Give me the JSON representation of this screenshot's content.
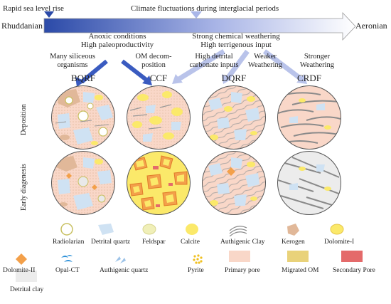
{
  "timeline": {
    "start": "Rhuddanian",
    "end": "Aeronian",
    "event_left": "Rapid sea level rise",
    "event_center": "Climate fluctuations during interglacial periods"
  },
  "drivers": {
    "left": [
      "Anoxic conditions",
      "High paleoproductivity"
    ],
    "right": [
      "Strong chemical weathering",
      "High terrigenous input"
    ]
  },
  "arrow_labels": {
    "a1": [
      "Many siliceous",
      "organisms"
    ],
    "a2": [
      "OM decom-",
      "position"
    ],
    "a3": [
      "High detrital",
      "carbonate inputs"
    ],
    "a4": [
      "Weaker",
      "Weathering"
    ],
    "a5": [
      "Stronger",
      "Weathering"
    ]
  },
  "facies": [
    "BQRF",
    "CCF",
    "DQRF",
    "CRDF"
  ],
  "rows": [
    "Deposition",
    "Early diagenesis"
  ],
  "legend": [
    {
      "label": "Radiolarian",
      "icon": "radiolarian-icon"
    },
    {
      "label": "Detrital quartz",
      "icon": "detrital-quartz-icon"
    },
    {
      "label": "Feldspar",
      "icon": "feldspar-icon"
    },
    {
      "label": "Calcite",
      "icon": "calcite-icon"
    },
    {
      "label": "Authigenic Clay",
      "icon": "authigenic-clay-icon"
    },
    {
      "label": "Kerogen",
      "icon": "kerogen-icon"
    },
    {
      "label": "Dolomite-I",
      "icon": "dolomite-i-icon"
    },
    {
      "label": "Dolomite-II",
      "icon": "dolomite-ii-icon"
    },
    {
      "label": "Opal-CT",
      "icon": "opal-ct-icon"
    },
    {
      "label": "Authigenic quartz",
      "icon": "authigenic-quartz-icon"
    },
    {
      "label": "Pyrite",
      "icon": "pyrite-icon"
    },
    {
      "label": "Primary  pore",
      "icon": "primary-pore-icon"
    },
    {
      "label": "Migrated OM",
      "icon": "migrated-om-icon"
    },
    {
      "label": "Secondary Pore",
      "icon": "secondary-pore-icon"
    },
    {
      "label": "Detrital clay",
      "icon": "detrital-clay-icon"
    }
  ],
  "colors": {
    "arrow_dark": "#2b4aa8",
    "arrow_light": "#b9c3ea",
    "matrix": "#f9d7c8",
    "quartz": "#cfe2f3",
    "calcite": "#fbe96a",
    "kerogen": "#e1b899",
    "dolomite2": "#f3a04a",
    "migrated_om": "#e9d27a",
    "secondary_pore": "#e46a6a",
    "detrital_clay": "#ececec"
  }
}
